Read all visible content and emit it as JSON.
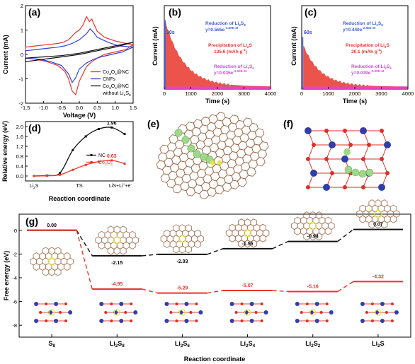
{
  "panels": {
    "a": "(a)",
    "b": "(b)",
    "c": "(c)",
    "d": "(d)",
    "e": "(e)",
    "f": "(f)",
    "g": "(g)"
  },
  "chart_data": [
    {
      "id": "a",
      "type": "line",
      "xlabel": "Voltage (V)",
      "ylabel": "Current (mA)",
      "xlim": [
        -1.5,
        1.5
      ],
      "ylim": [
        -2.0,
        2.0
      ],
      "xticks": [
        -1.5,
        -1.0,
        -0.5,
        0.0,
        0.5,
        1.0,
        1.5
      ],
      "yticks": [
        -2,
        -1,
        0,
        1,
        2
      ],
      "legend_position": "bottom-right",
      "series": [
        {
          "name": "Co3O4@NC",
          "name_main": "Co",
          "name_sub1": "3",
          "name_mid": "O",
          "name_sub2": "4",
          "name_end": "@NC",
          "color": "#e8352b",
          "x": [
            -1.5,
            -1.2,
            -0.9,
            -0.6,
            -0.45,
            -0.3,
            -0.2,
            -0.1,
            0.0,
            0.1,
            0.2,
            0.28,
            0.35,
            0.42,
            0.5,
            0.7,
            1.0,
            1.3,
            1.5,
            1.3,
            1.0,
            0.7,
            0.5,
            0.35,
            0.2,
            0.1,
            0.0,
            -0.1,
            -0.2,
            -0.3,
            -0.4,
            -0.6,
            -0.9,
            -1.2,
            -1.5
          ],
          "y": [
            0.3,
            0.35,
            0.4,
            0.45,
            0.5,
            0.6,
            0.75,
            0.9,
            1.0,
            1.2,
            1.55,
            1.35,
            1.45,
            1.2,
            0.95,
            0.7,
            0.55,
            0.45,
            0.4,
            0.2,
            0.1,
            0.0,
            -0.15,
            -0.3,
            -0.5,
            -0.8,
            -1.1,
            -1.65,
            -1.5,
            -1.0,
            -0.7,
            -0.45,
            -0.3,
            -0.2,
            -0.15
          ]
        },
        {
          "name": "CNFs",
          "color": "#2f3fd8",
          "x": [
            -1.5,
            -1.2,
            -0.9,
            -0.6,
            -0.4,
            -0.2,
            0.0,
            0.2,
            0.3,
            0.4,
            0.5,
            0.8,
            1.1,
            1.5,
            1.2,
            0.9,
            0.6,
            0.4,
            0.2,
            0.0,
            -0.1,
            -0.2,
            -0.3,
            -0.5,
            -0.8,
            -1.1,
            -1.5
          ],
          "y": [
            0.15,
            0.2,
            0.25,
            0.3,
            0.35,
            0.45,
            0.6,
            0.85,
            1.05,
            0.9,
            0.7,
            0.5,
            0.35,
            0.3,
            0.1,
            0.0,
            -0.1,
            -0.2,
            -0.35,
            -0.6,
            -0.95,
            -1.15,
            -0.8,
            -0.45,
            -0.3,
            -0.2,
            -0.15
          ]
        },
        {
          "name": "Co3O4@NC without Li2S6",
          "name_main": "Co",
          "name_sub1": "3",
          "name_mid": "O",
          "name_sub2": "4",
          "name_end": "@NC",
          "name_line2": "without Li",
          "name_line2_sub": "2",
          "name_line2_end": "S",
          "name_line2_sub2": "6",
          "color": "#111111",
          "x": [
            -1.5,
            -1.0,
            -0.5,
            0.0,
            0.5,
            1.0,
            1.5,
            1.0,
            0.5,
            0.0,
            -0.5,
            -1.0,
            -1.5
          ],
          "y": [
            -0.15,
            -0.1,
            -0.05,
            0.05,
            0.2,
            0.35,
            0.5,
            0.3,
            0.15,
            0.0,
            -0.1,
            -0.2,
            -0.3
          ]
        }
      ]
    },
    {
      "id": "b",
      "type": "area",
      "xlabel": "Time (s)",
      "ylabel": "Current (mA)",
      "xlim": [
        0,
        4000
      ],
      "ylim": [
        0,
        0.4
      ],
      "xticks": [
        0,
        1000,
        2000,
        3000,
        4000
      ],
      "yticks": [],
      "series": [
        {
          "name": "Reduction of Li2S8",
          "color": "#3d5bd9",
          "peak": 0.33,
          "x_start": 0,
          "x_end": 30
        },
        {
          "name": "Precipitation of Li2S",
          "color": "#e8352b",
          "peak": 0.33,
          "x_start": 30,
          "decay": 700
        },
        {
          "name": "Reduction of Li2S6",
          "color": "#d946d9",
          "peak": 0.012,
          "x_start": 30
        }
      ],
      "annotations": {
        "time_label": "30s",
        "reduction_title": "Reduction of Li",
        "reduction_sub1": "2",
        "reduction_end": "S",
        "reduction_sub2": "8",
        "reduction_eq": "y=0.565e",
        "reduction_exp": "-3.60E-3t",
        "precip_title": "Precipitation of Li",
        "precip_sub": "2",
        "precip_end": "S",
        "precip_value": "135.6 (mAh g",
        "precip_value_sup": "-1",
        "precip_value_end": ")",
        "red6_title": "Reduction of Li",
        "red6_sub1": "2",
        "red6_end": "S",
        "red6_sub2": "6",
        "red6_eq": "y=0.035e",
        "red6_exp": "-3.00E-4t"
      }
    },
    {
      "id": "c",
      "type": "area",
      "xlabel": "Time (s)",
      "ylabel": "Current (mA)",
      "xlim": [
        0,
        4000
      ],
      "ylim": [
        0,
        0.4
      ],
      "xticks": [
        0,
        1000,
        2000,
        3000,
        4000
      ],
      "yticks": [],
      "series": [
        {
          "name": "Reduction of Li2S8",
          "color": "#3d5bd9",
          "peak": 0.25,
          "x_start": 0,
          "x_end": 60
        },
        {
          "name": "Precipitation of Li2S",
          "color": "#e8352b",
          "peak": 0.21,
          "x_start": 60,
          "decay": 650
        },
        {
          "name": "Reduction of Li2S6",
          "color": "#d946d9",
          "peak": 0.012,
          "x_start": 60
        }
      ],
      "annotations": {
        "time_label": "60s",
        "reduction_title": "Reduction of Li",
        "reduction_sub1": "2",
        "reduction_end": "S",
        "reduction_sub2": "8",
        "reduction_eq": "y=0.440e",
        "reduction_exp": "-2.50E-3t",
        "precip_title": "Precipitation of Li",
        "precip_sub": "2",
        "precip_end": "S",
        "precip_value": "30.1 (mAh g",
        "precip_value_sup": "-1",
        "precip_value_end": ")",
        "red6_title": "Reduction of Li",
        "red6_sub1": "2",
        "red6_end": "S",
        "red6_sub2": "6",
        "red6_eq": "y=0.039e",
        "red6_exp": "-3.00E-4t"
      }
    },
    {
      "id": "d",
      "type": "line",
      "xlabel": "Reaction coordinate",
      "ylabel": "Relative energy (eV)",
      "ylim": [
        -0.2,
        2.2
      ],
      "yticks": [
        0.0,
        0.4,
        0.8,
        1.2,
        1.6,
        2.0
      ],
      "categories": [
        "Li2S",
        "TS",
        "LiS+Li+e"
      ],
      "category_labels": {
        "first": "Li",
        "first_sub": "2",
        "first_end": "S",
        "mid": "TS",
        "last": "LiS+Li",
        "last_sup": "+",
        "last_end": "+e",
        "last_sup2": "-"
      },
      "legend_position": "bottom-right",
      "series": [
        {
          "name": "NC",
          "color": "#111111",
          "x": [
            0,
            1,
            2,
            3,
            4,
            5,
            6,
            7
          ],
          "y": [
            0.0,
            0.02,
            0.12,
            1.05,
            1.6,
            1.9,
            1.96,
            1.7
          ],
          "peak_label": "1.96"
        },
        {
          "name": "Co3O4",
          "name_main": "Co",
          "name_sub1": "3",
          "name_mid": "O",
          "name_sub2": "4",
          "color": "#e8352b",
          "x": [
            0,
            1,
            2,
            3,
            4,
            5,
            6,
            7
          ],
          "y": [
            0.0,
            0.01,
            0.05,
            0.25,
            0.45,
            0.58,
            0.63,
            0.5
          ],
          "peak_label": "0.63"
        }
      ]
    },
    {
      "id": "g",
      "type": "line",
      "xlabel": "Reaction coordinate",
      "ylabel": "Free energy (eV)",
      "ylim": [
        -9,
        1
      ],
      "yticks": [
        0,
        -2,
        -4,
        -6,
        -8
      ],
      "categories": [
        "S8",
        "Li2S8",
        "Li2S6",
        "Li2S4",
        "Li2S2",
        "Li2S"
      ],
      "category_labels": [
        {
          "main": "S",
          "sub": "8"
        },
        {
          "main": "Li",
          "sub": "2",
          "end": "S",
          "sub2": "8"
        },
        {
          "main": "Li",
          "sub": "2",
          "end": "S",
          "sub2": "6"
        },
        {
          "main": "Li",
          "sub": "2",
          "end": "S",
          "sub2": "4"
        },
        {
          "main": "Li",
          "sub": "2",
          "end": "S",
          "sub2": "2"
        },
        {
          "main": "Li",
          "sub": "2",
          "end": "S",
          "sub2": ""
        }
      ],
      "series": [
        {
          "name": "NC",
          "color": "#111111",
          "values": [
            0.0,
            -2.15,
            -2.03,
            -1.55,
            -0.94,
            0.07
          ],
          "labels": [
            "0.00",
            "-2.15",
            "-2.03",
            "-1.55",
            "-0.94",
            "0.07"
          ]
        },
        {
          "name": "Co3O4",
          "color": "#e8352b",
          "values": [
            0.0,
            -4.95,
            -5.29,
            -5.07,
            -5.16,
            -4.32
          ],
          "labels": [
            "",
            "-4.95",
            "-5.29",
            "-5.07",
            "-5.16",
            "-4.32"
          ]
        }
      ]
    }
  ]
}
